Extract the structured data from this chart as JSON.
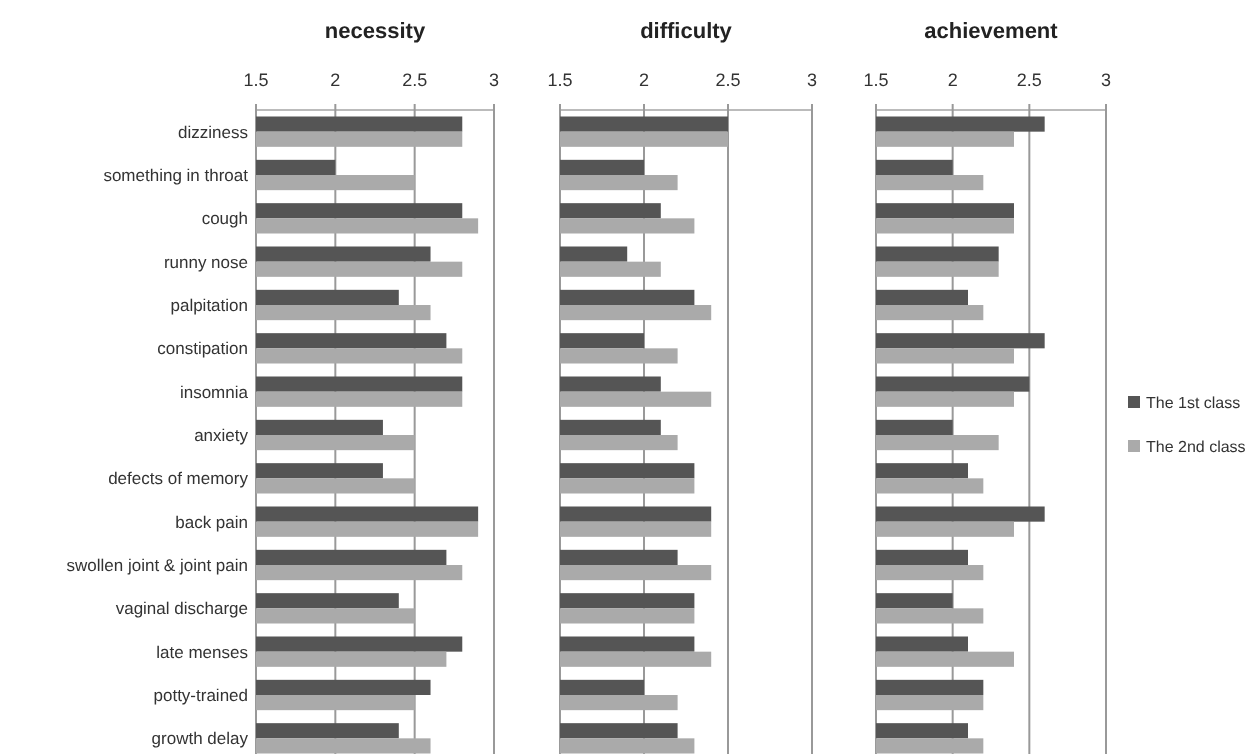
{
  "chart_data": [
    {
      "type": "bar",
      "orientation": "horizontal",
      "title": "necessity",
      "categories": [
        "dizziness",
        "something in throat",
        "cough",
        "runny nose",
        "palpitation",
        "constipation",
        "insomnia",
        "anxiety",
        "defects of memory",
        "back pain",
        "swollen joint & joint pain",
        "vaginal discharge",
        "late menses",
        "potty-trained",
        "growth delay"
      ],
      "xlim": [
        1.5,
        3
      ],
      "xticks": [
        1.5,
        2,
        2.5,
        3
      ],
      "grid": "x",
      "legend": false,
      "series": [
        {
          "color": "#555555",
          "values": [
            2.8,
            2.0,
            2.8,
            2.6,
            2.4,
            2.7,
            2.8,
            2.3,
            2.3,
            2.9,
            2.7,
            2.4,
            2.8,
            2.6,
            2.4
          ]
        },
        {
          "color": "#aaaaaa",
          "values": [
            2.8,
            2.5,
            2.9,
            2.8,
            2.6,
            2.8,
            2.8,
            2.5,
            2.5,
            2.9,
            2.8,
            2.5,
            2.7,
            2.5,
            2.6
          ]
        }
      ]
    },
    {
      "type": "bar",
      "orientation": "horizontal",
      "title": "difficulty",
      "xlim": [
        1.5,
        3
      ],
      "xticks": [
        1.5,
        2,
        2.5,
        3
      ],
      "grid": "x",
      "legend": false,
      "tick_labels": "x",
      "series": [
        {
          "color": "#555555",
          "values": [
            2.5,
            2.0,
            2.1,
            1.9,
            2.3,
            2.0,
            2.1,
            2.1,
            2.3,
            2.4,
            2.2,
            2.3,
            2.3,
            2.0,
            2.2
          ]
        },
        {
          "color": "#aaaaaa",
          "values": [
            2.5,
            2.2,
            2.3,
            2.1,
            2.4,
            2.2,
            2.4,
            2.2,
            2.3,
            2.4,
            2.4,
            2.3,
            2.4,
            2.2,
            2.3
          ]
        }
      ]
    },
    {
      "type": "bar",
      "orientation": "horizontal",
      "title": "achievement",
      "xlim": [
        1.5,
        3
      ],
      "xticks": [
        1.5,
        2,
        2.5,
        3
      ],
      "grid": "x",
      "legend": "right",
      "tick_labels": "x",
      "series": [
        {
          "name": "The 1st class",
          "color": "#555555",
          "values": [
            2.6,
            2.0,
            2.4,
            2.3,
            2.1,
            2.6,
            2.5,
            2.0,
            2.1,
            2.6,
            2.1,
            2.0,
            2.1,
            2.2,
            2.1
          ]
        },
        {
          "name": "The 2nd class",
          "color": "#aaaaaa",
          "values": [
            2.4,
            2.2,
            2.4,
            2.3,
            2.2,
            2.4,
            2.4,
            2.3,
            2.2,
            2.4,
            2.2,
            2.2,
            2.4,
            2.2,
            2.2
          ]
        }
      ]
    }
  ]
}
